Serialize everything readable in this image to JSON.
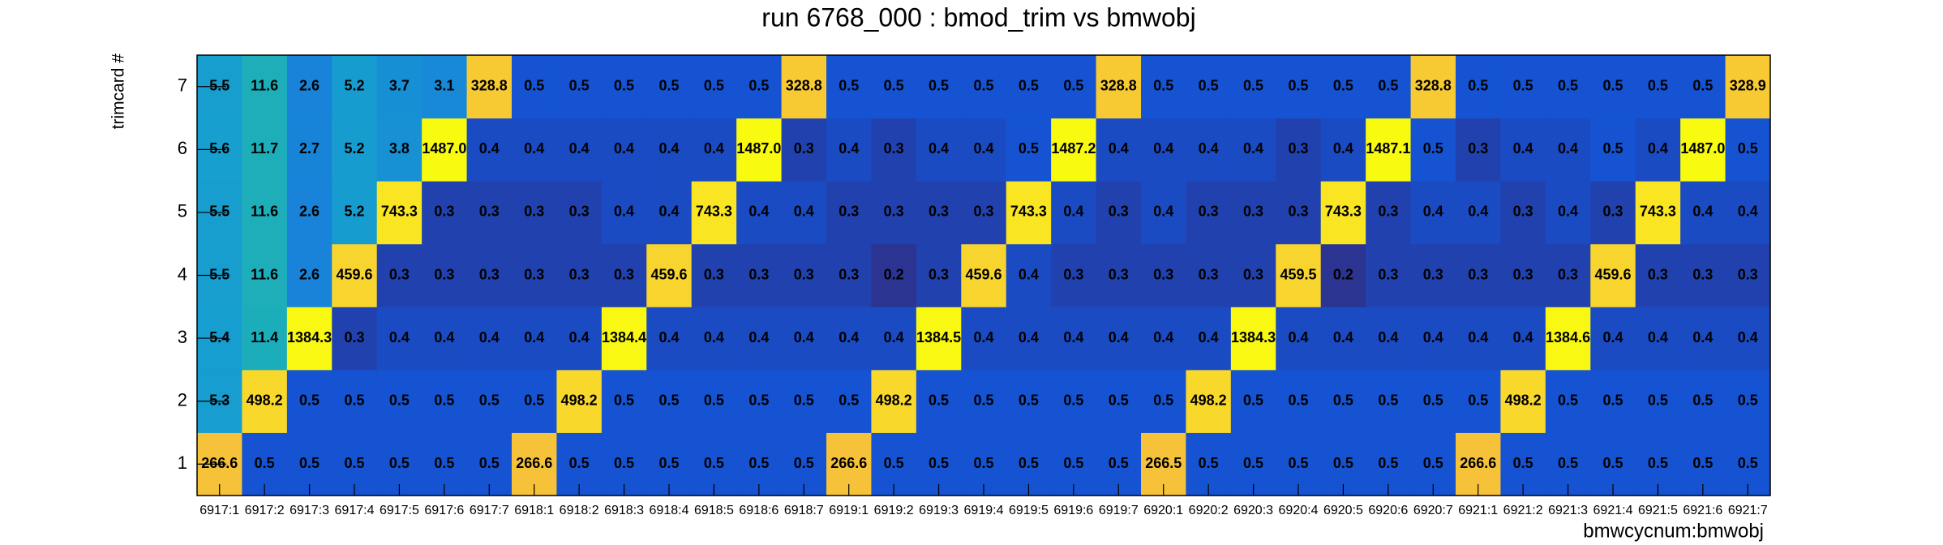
{
  "chart_data": {
    "type": "heatmap",
    "title": "run 6768_000 : bmod_trim vs bmwobj",
    "x_label": "bmwcycnum:bmwobj",
    "y_label": "trimcard #",
    "x_categories": [
      "6917:1",
      "6917:2",
      "6917:3",
      "6917:4",
      "6917:5",
      "6917:6",
      "6917:7",
      "6918:1",
      "6918:2",
      "6918:3",
      "6918:4",
      "6918:5",
      "6918:6",
      "6918:7",
      "6919:1",
      "6919:2",
      "6919:3",
      "6919:4",
      "6919:5",
      "6919:6",
      "6919:7",
      "6920:1",
      "6920:2",
      "6920:3",
      "6920:4",
      "6920:5",
      "6920:6",
      "6920:7",
      "6921:1",
      "6921:2",
      "6921:3",
      "6921:4",
      "6921:5",
      "6921:6",
      "6921:7"
    ],
    "y_categories": [
      "1",
      "2",
      "3",
      "4",
      "5",
      "6",
      "7"
    ],
    "z_log": true,
    "palette": [
      "#2b3490",
      "#1552d2",
      "#1470d8",
      "#1886d8",
      "#16a8cc",
      "#22b2aa",
      "#70bd78",
      "#c0bc48",
      "#f5c03a",
      "#fadf28",
      "#f8fa10"
    ],
    "text_color": "#000000",
    "values": [
      [
        266.6,
        0.5,
        0.5,
        0.5,
        0.5,
        0.5,
        0.5,
        266.6,
        0.5,
        0.5,
        0.5,
        0.5,
        0.5,
        0.5,
        266.6,
        0.5,
        0.5,
        0.5,
        0.5,
        0.5,
        0.5,
        266.5,
        0.5,
        0.5,
        0.5,
        0.5,
        0.5,
        0.5,
        266.6,
        0.5,
        0.5,
        0.5,
        0.5,
        0.5,
        0.5
      ],
      [
        5.3,
        498.2,
        0.5,
        0.5,
        0.5,
        0.5,
        0.5,
        0.5,
        498.2,
        0.5,
        0.5,
        0.5,
        0.5,
        0.5,
        0.5,
        498.2,
        0.5,
        0.5,
        0.5,
        0.5,
        0.5,
        0.5,
        498.2,
        0.5,
        0.5,
        0.5,
        0.5,
        0.5,
        0.5,
        498.2,
        0.5,
        0.5,
        0.5,
        0.5,
        0.5
      ],
      [
        5.4,
        11.4,
        1384.3,
        0.3,
        0.4,
        0.4,
        0.4,
        0.4,
        0.4,
        1384.4,
        0.4,
        0.4,
        0.4,
        0.4,
        0.4,
        0.4,
        1384.5,
        0.4,
        0.4,
        0.4,
        0.4,
        0.4,
        0.4,
        1384.3,
        0.4,
        0.4,
        0.4,
        0.4,
        0.4,
        0.4,
        1384.6,
        0.4,
        0.4,
        0.4,
        0.4
      ],
      [
        5.5,
        11.6,
        2.6,
        459.6,
        0.3,
        0.3,
        0.3,
        0.3,
        0.3,
        0.3,
        459.6,
        0.3,
        0.3,
        0.3,
        0.3,
        0.2,
        0.3,
        459.6,
        0.4,
        0.3,
        0.3,
        0.3,
        0.3,
        0.3,
        459.5,
        0.2,
        0.3,
        0.3,
        0.3,
        0.3,
        0.3,
        459.6,
        0.3,
        0.3,
        0.3
      ],
      [
        5.5,
        11.6,
        2.6,
        5.2,
        743.3,
        0.3,
        0.3,
        0.3,
        0.3,
        0.4,
        0.4,
        743.3,
        0.4,
        0.4,
        0.3,
        0.3,
        0.3,
        0.3,
        743.3,
        0.4,
        0.3,
        0.4,
        0.3,
        0.3,
        0.3,
        743.3,
        0.3,
        0.4,
        0.4,
        0.3,
        0.4,
        0.3,
        743.3,
        0.4,
        0.4
      ],
      [
        5.6,
        11.7,
        2.7,
        5.2,
        3.8,
        1487.0,
        0.4,
        0.4,
        0.4,
        0.4,
        0.4,
        0.4,
        1487.0,
        0.3,
        0.4,
        0.3,
        0.4,
        0.4,
        0.5,
        1487.2,
        0.4,
        0.4,
        0.4,
        0.4,
        0.3,
        0.4,
        1487.1,
        0.5,
        0.3,
        0.4,
        0.4,
        0.5,
        0.4,
        1487.0,
        0.5
      ],
      [
        5.5,
        11.6,
        2.6,
        5.2,
        3.7,
        3.1,
        328.8,
        0.5,
        0.5,
        0.5,
        0.5,
        0.5,
        0.5,
        328.8,
        0.5,
        0.5,
        0.5,
        0.5,
        0.5,
        0.5,
        328.8,
        0.5,
        0.5,
        0.5,
        0.5,
        0.5,
        0.5,
        328.8,
        0.5,
        0.5,
        0.5,
        0.5,
        0.5,
        0.5,
        328.9
      ]
    ],
    "value_labels": [
      [
        "266.6",
        "0.5",
        "0.5",
        "0.5",
        "0.5",
        "0.5",
        "0.5",
        "266.6",
        "0.5",
        "0.5",
        "0.5",
        "0.5",
        "0.5",
        "0.5",
        "266.6",
        "0.5",
        "0.5",
        "0.5",
        "0.5",
        "0.5",
        "0.5",
        "266.5",
        "0.5",
        "0.5",
        "0.5",
        "0.5",
        "0.5",
        "0.5",
        "266.6",
        "0.5",
        "0.5",
        "0.5",
        "0.5",
        "0.5",
        "0.5"
      ],
      [
        "5.3",
        "498.2",
        "0.5",
        "0.5",
        "0.5",
        "0.5",
        "0.5",
        "0.5",
        "498.2",
        "0.5",
        "0.5",
        "0.5",
        "0.5",
        "0.5",
        "0.5",
        "498.2",
        "0.5",
        "0.5",
        "0.5",
        "0.5",
        "0.5",
        "0.5",
        "498.2",
        "0.5",
        "0.5",
        "0.5",
        "0.5",
        "0.5",
        "0.5",
        "498.2",
        "0.5",
        "0.5",
        "0.5",
        "0.5",
        "0.5"
      ],
      [
        "5.4",
        "11.4",
        "1384.3",
        "0.3",
        "0.4",
        "0.4",
        "0.4",
        "0.4",
        "0.4",
        "1384.4",
        "0.4",
        "0.4",
        "0.4",
        "0.4",
        "0.4",
        "0.4",
        "1384.5",
        "0.4",
        "0.4",
        "0.4",
        "0.4",
        "0.4",
        "0.4",
        "1384.3",
        "0.4",
        "0.4",
        "0.4",
        "0.4",
        "0.4",
        "0.4",
        "1384.6",
        "0.4",
        "0.4",
        "0.4",
        "0.4"
      ],
      [
        "5.5",
        "11.6",
        "2.6",
        "459.6",
        "0.3",
        "0.3",
        "0.3",
        "0.3",
        "0.3",
        "0.3",
        "459.6",
        "0.3",
        "0.3",
        "0.3",
        "0.3",
        "0.2",
        "0.3",
        "459.6",
        "0.4",
        "0.3",
        "0.3",
        "0.3",
        "0.3",
        "0.3",
        "459.5",
        "0.2",
        "0.3",
        "0.3",
        "0.3",
        "0.3",
        "0.3",
        "459.6",
        "0.3",
        "0.3",
        "0.3"
      ],
      [
        "5.5",
        "11.6",
        "2.6",
        "5.2",
        "743.3",
        "0.3",
        "0.3",
        "0.3",
        "0.3",
        "0.4",
        "0.4",
        "743.3",
        "0.4",
        "0.4",
        "0.3",
        "0.3",
        "0.3",
        "0.3",
        "743.3",
        "0.4",
        "0.3",
        "0.4",
        "0.3",
        "0.3",
        "0.3",
        "743.3",
        "0.3",
        "0.4",
        "0.4",
        "0.3",
        "0.4",
        "0.3",
        "743.3",
        "0.4",
        "0.4"
      ],
      [
        "5.6",
        "11.7",
        "2.7",
        "5.2",
        "3.8",
        "1487.0",
        "0.4",
        "0.4",
        "0.4",
        "0.4",
        "0.4",
        "0.4",
        "1487.0",
        "0.3",
        "0.4",
        "0.3",
        "0.4",
        "0.4",
        "0.5",
        "1487.2",
        "0.4",
        "0.4",
        "0.4",
        "0.4",
        "0.3",
        "0.4",
        "1487.1",
        "0.5",
        "0.3",
        "0.4",
        "0.4",
        "0.5",
        "0.4",
        "1487.0",
        "0.5"
      ],
      [
        "5.5",
        "11.6",
        "2.6",
        "5.2",
        "3.7",
        "3.1",
        "328.8",
        "0.5",
        "0.5",
        "0.5",
        "0.5",
        "0.5",
        "0.5",
        "328.8",
        "0.5",
        "0.5",
        "0.5",
        "0.5",
        "0.5",
        "0.5",
        "328.8",
        "0.5",
        "0.5",
        "0.5",
        "0.5",
        "0.5",
        "0.5",
        "328.8",
        "0.5",
        "0.5",
        "0.5",
        "0.5",
        "0.5",
        "0.5",
        "328.9"
      ]
    ]
  }
}
